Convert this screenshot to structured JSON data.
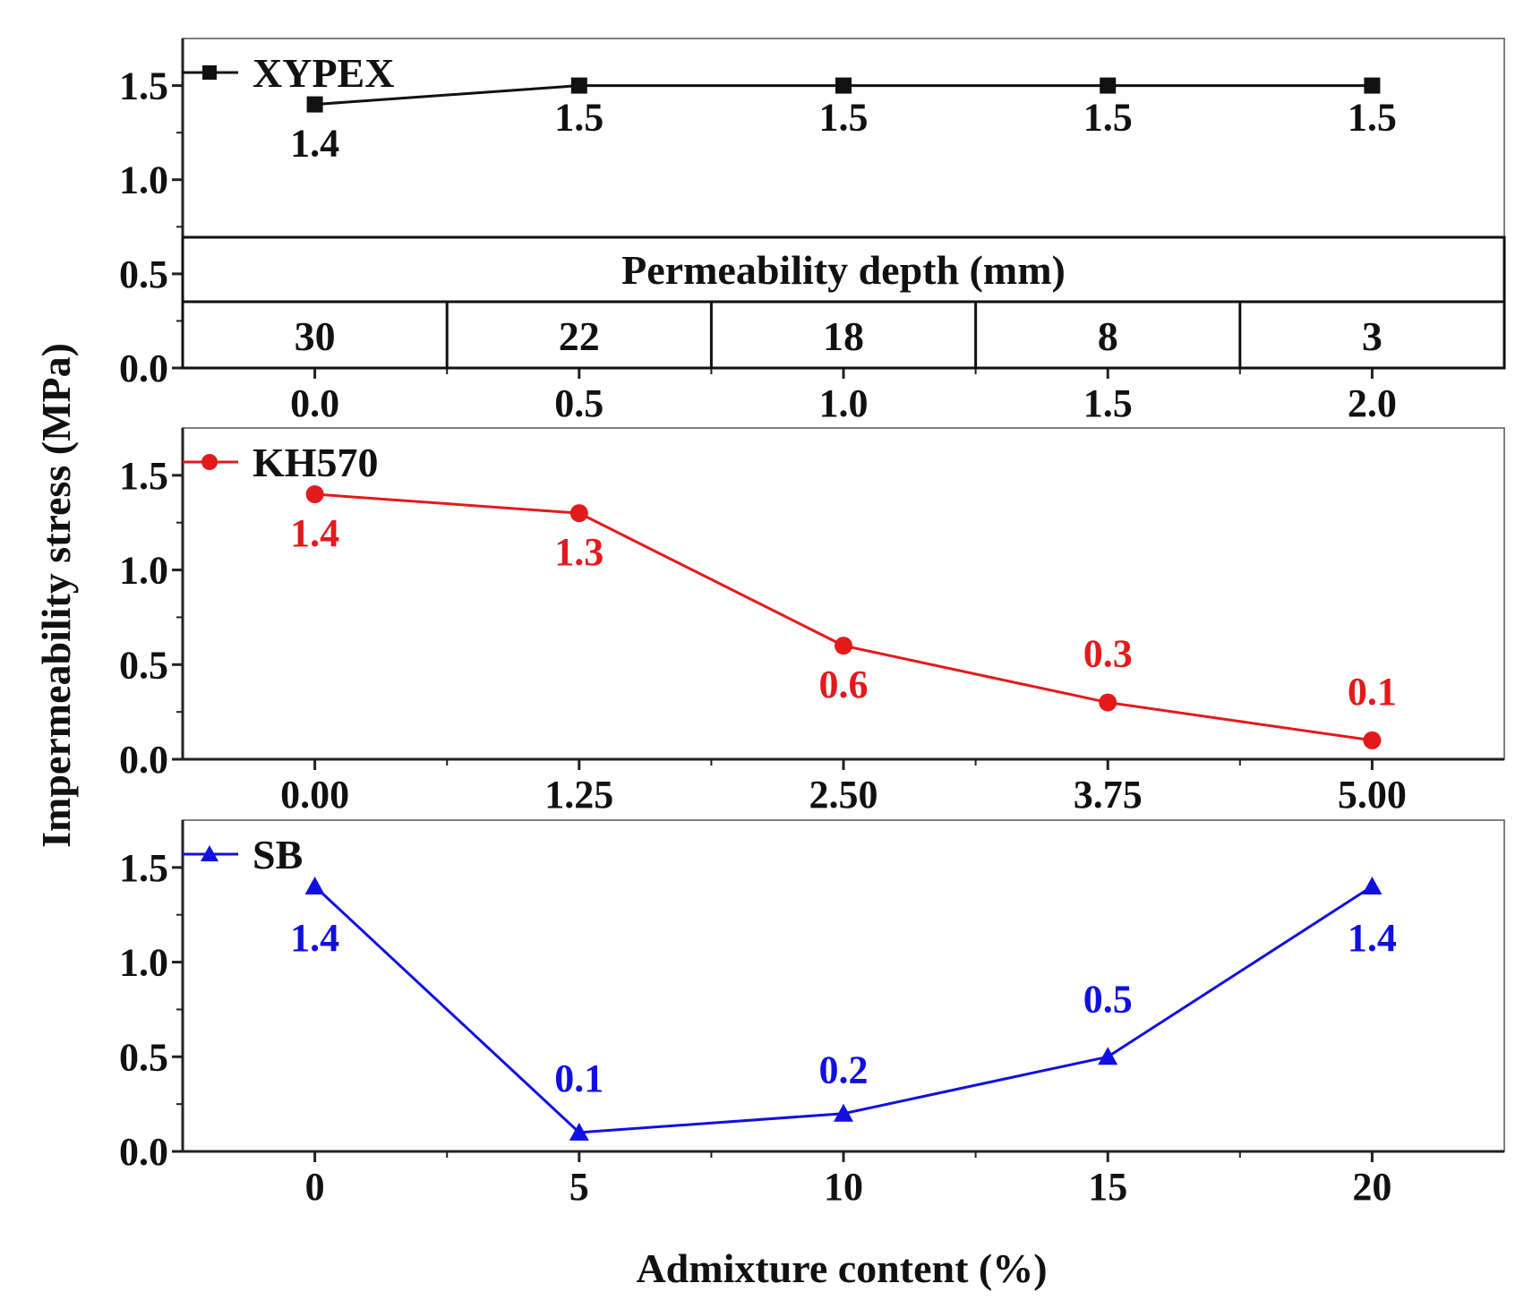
{
  "chart_data": [
    {
      "type": "line",
      "series": [
        {
          "name": "XYPEX",
          "x": [
            0.0,
            0.5,
            1.0,
            1.5,
            2.0
          ],
          "values": [
            1.4,
            1.5,
            1.5,
            1.5,
            1.5
          ],
          "color": "#111111",
          "marker": "square"
        }
      ],
      "x_ticks": [
        "0.0",
        "0.5",
        "1.0",
        "1.5",
        "2.0"
      ],
      "xlim": [
        -0.25,
        2.25
      ],
      "ylim": [
        0.0,
        1.75
      ],
      "y_ticks": [
        "0.0",
        "0.5",
        "1.0",
        "1.5"
      ],
      "data_labels": [
        "1.4",
        "1.5",
        "1.5",
        "1.5",
        "1.5"
      ],
      "legend": "XYPEX",
      "table": {
        "title": "Permeability depth (mm)",
        "values": [
          "30",
          "22",
          "18",
          "8",
          "3"
        ]
      }
    },
    {
      "type": "line",
      "series": [
        {
          "name": "KH570",
          "x": [
            0.0,
            1.25,
            2.5,
            3.75,
            5.0
          ],
          "values": [
            1.4,
            1.3,
            0.6,
            0.3,
            0.1
          ],
          "color": "#e31a1c",
          "marker": "circle"
        }
      ],
      "x_ticks": [
        "0.00",
        "1.25",
        "2.50",
        "3.75",
        "5.00"
      ],
      "xlim": [
        -0.625,
        5.625
      ],
      "ylim": [
        0.0,
        1.75
      ],
      "y_ticks": [
        "0.0",
        "0.5",
        "1.0",
        "1.5"
      ],
      "data_labels": [
        "1.4",
        "1.3",
        "0.6",
        "0.3",
        "0.1"
      ],
      "legend": "KH570"
    },
    {
      "type": "line",
      "series": [
        {
          "name": "SB",
          "x": [
            0,
            5,
            10,
            15,
            20
          ],
          "values": [
            1.4,
            0.1,
            0.2,
            0.5,
            1.4
          ],
          "color": "#1010e0",
          "marker": "triangle"
        }
      ],
      "x_ticks": [
        "0",
        "5",
        "10",
        "15",
        "20"
      ],
      "xlim": [
        -2.5,
        22.5
      ],
      "ylim": [
        0.0,
        1.75
      ],
      "y_ticks": [
        "0.0",
        "0.5",
        "1.0",
        "1.5"
      ],
      "data_labels": [
        "1.4",
        "0.1",
        "0.2",
        "0.5",
        "1.4"
      ],
      "legend": "SB"
    }
  ],
  "ylabel": "Impermeability stress (MPa)",
  "xlabel": "Admixture content (%)"
}
